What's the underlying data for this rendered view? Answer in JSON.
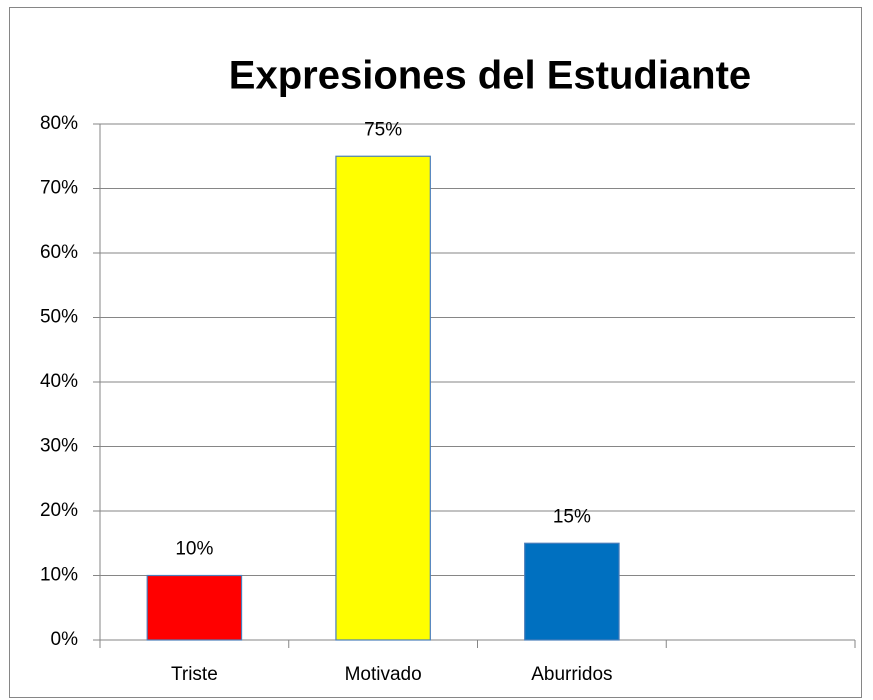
{
  "chart_data": {
    "type": "bar",
    "title": "Expresiones del Estudiante",
    "categories": [
      "Triste",
      "Motivado",
      "Aburridos",
      null
    ],
    "values": [
      10,
      75,
      15,
      null
    ],
    "value_labels": [
      "10%",
      "75%",
      "15%",
      null
    ],
    "colors": [
      "#ff0000",
      "#ffff00",
      "#0070c0",
      null
    ],
    "ylim": [
      0,
      80
    ],
    "yticks": [
      {
        "value": 0,
        "label": "0%"
      },
      {
        "value": 10,
        "label": "10%"
      },
      {
        "value": 20,
        "label": "20%"
      },
      {
        "value": 30,
        "label": "30%"
      },
      {
        "value": 40,
        "label": "40%"
      },
      {
        "value": 50,
        "label": "50%"
      },
      {
        "value": 60,
        "label": "60%"
      },
      {
        "value": 70,
        "label": "70%"
      },
      {
        "value": 80,
        "label": "80%"
      }
    ],
    "grid": true
  }
}
